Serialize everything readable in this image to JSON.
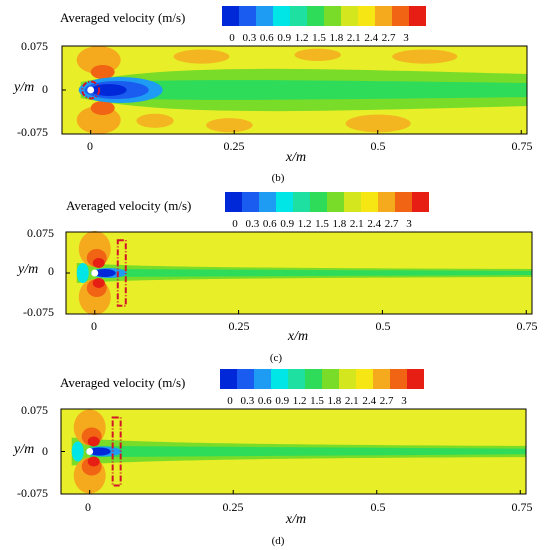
{
  "chart_data": [
    {
      "type": "heatmap",
      "panel_label": "(b)",
      "legend_title": "Averaged velocity (m/s)",
      "legend_ticks": [
        "0",
        "0.3",
        "0.6",
        "0.9",
        "1.2",
        "1.5",
        "1.8",
        "2.1",
        "2.4",
        "2.7",
        "3"
      ],
      "xlabel": "x/m",
      "ylabel": "y/m",
      "x_ticks": [
        "0",
        "0.25",
        "0.5",
        "0.75"
      ],
      "y_ticks": [
        "0.075",
        "0",
        "-0.075"
      ],
      "xlim": [
        -0.05,
        0.76
      ],
      "ylim": [
        -0.075,
        0.075
      ],
      "cylinder": {
        "x": 0,
        "y": 0,
        "r": 0.006
      },
      "highlight": "circle"
    },
    {
      "type": "heatmap",
      "panel_label": "(c)",
      "legend_title": "Averaged velocity (m/s)",
      "legend_ticks": [
        "0",
        "0.3",
        "0.6",
        "0.9",
        "1.2",
        "1.5",
        "1.8",
        "2.1",
        "2.4",
        "2.7",
        "3"
      ],
      "xlabel": "x/m",
      "ylabel": "y/m",
      "x_ticks": [
        "0",
        "0.25",
        "0.5",
        "0.75"
      ],
      "y_ticks": [
        "0.075",
        "0",
        "-0.075"
      ],
      "xlim": [
        -0.05,
        0.76
      ],
      "ylim": [
        -0.075,
        0.075
      ],
      "cylinder": {
        "x": 0,
        "y": 0,
        "r": 0.006
      },
      "highlight": "rectangle"
    },
    {
      "type": "heatmap",
      "panel_label": "(d)",
      "legend_title": "Averaged velocity (m/s)",
      "legend_ticks": [
        "0",
        "0.3",
        "0.6",
        "0.9",
        "1.2",
        "1.5",
        "1.8",
        "2.1",
        "2.4",
        "2.7",
        "3"
      ],
      "xlabel": "x/m",
      "ylabel": "y/m",
      "x_ticks": [
        "0",
        "0.25",
        "0.5",
        "0.75"
      ],
      "y_ticks": [
        "0.075",
        "0",
        "-0.075"
      ],
      "xlim": [
        -0.05,
        0.76
      ],
      "ylim": [
        -0.075,
        0.075
      ],
      "cylinder": {
        "x": 0,
        "y": 0,
        "r": 0.006
      },
      "highlight": "rectangle"
    }
  ],
  "colors": {
    "scale": [
      "#0028d8",
      "#1a5cf0",
      "#1e9bf2",
      "#00e6e6",
      "#1ee0a0",
      "#2edc5a",
      "#78dc28",
      "#d4e61e",
      "#f6e614",
      "#f5aa1e",
      "#f06414",
      "#e61e14"
    ],
    "background": "#e8ee28",
    "highlight": "#d2142a"
  }
}
